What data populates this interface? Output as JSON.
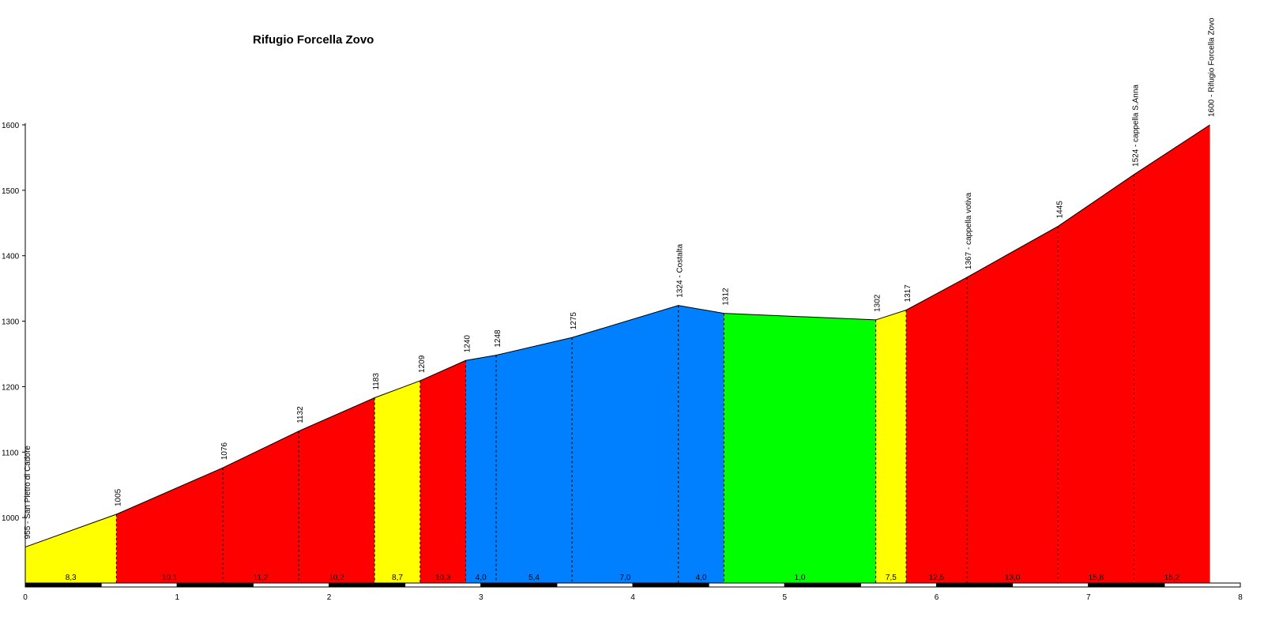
{
  "chart_data": {
    "type": "area",
    "title": "Rifugio Forcella Zovo",
    "xlabel": "",
    "ylabel": "",
    "xlim": [
      0,
      8
    ],
    "ylim": [
      900,
      1600
    ],
    "x_ticks": [
      0,
      1,
      2,
      3,
      4,
      5,
      6,
      7,
      8
    ],
    "y_ticks": [
      1000,
      1100,
      1200,
      1300,
      1400,
      1500,
      1600
    ],
    "grid": false,
    "legend": "none",
    "points": [
      {
        "x": 0.0,
        "y": 955,
        "label": "955 - San Pietro di Cadore"
      },
      {
        "x": 0.6,
        "y": 1005,
        "label": "1005"
      },
      {
        "x": 1.3,
        "y": 1076,
        "label": "1076"
      },
      {
        "x": 1.8,
        "y": 1132,
        "label": "1132"
      },
      {
        "x": 2.3,
        "y": 1183,
        "label": "1183"
      },
      {
        "x": 2.6,
        "y": 1209,
        "label": "1209"
      },
      {
        "x": 2.9,
        "y": 1240,
        "label": "1240"
      },
      {
        "x": 3.1,
        "y": 1248,
        "label": "1248"
      },
      {
        "x": 3.6,
        "y": 1275,
        "label": "1275"
      },
      {
        "x": 4.3,
        "y": 1324,
        "label": "1324 - Costalta"
      },
      {
        "x": 4.6,
        "y": 1312,
        "label": "1312"
      },
      {
        "x": 5.6,
        "y": 1302,
        "label": "1302"
      },
      {
        "x": 5.8,
        "y": 1317,
        "label": "1317"
      },
      {
        "x": 6.2,
        "y": 1367,
        "label": "1367 - cappella votiva"
      },
      {
        "x": 6.8,
        "y": 1445,
        "label": "1445"
      },
      {
        "x": 7.3,
        "y": 1524,
        "label": "1524 - cappella S.Anna"
      },
      {
        "x": 7.8,
        "y": 1600,
        "label": "1600 - Rifugio Forcella Zovo"
      }
    ],
    "segments": [
      {
        "grade": "8,3",
        "color": "#ffff00"
      },
      {
        "grade": "10,1",
        "color": "#ff0000"
      },
      {
        "grade": "11,2",
        "color": "#ff0000"
      },
      {
        "grade": "10,2",
        "color": "#ff0000"
      },
      {
        "grade": "8,7",
        "color": "#ffff00"
      },
      {
        "grade": "10,3",
        "color": "#ff0000"
      },
      {
        "grade": "4,0",
        "color": "#0080ff"
      },
      {
        "grade": "5,4",
        "color": "#0080ff"
      },
      {
        "grade": "7,0",
        "color": "#0080ff"
      },
      {
        "grade": "4,0",
        "color": "#0080ff"
      },
      {
        "grade": "1,0",
        "color": "#00ff00"
      },
      {
        "grade": "7,5",
        "color": "#ffff00"
      },
      {
        "grade": "12,5",
        "color": "#ff0000"
      },
      {
        "grade": "13,0",
        "color": "#ff0000"
      },
      {
        "grade": "15,8",
        "color": "#ff0000"
      },
      {
        "grade": "15,2",
        "color": "#ff0000"
      }
    ]
  }
}
